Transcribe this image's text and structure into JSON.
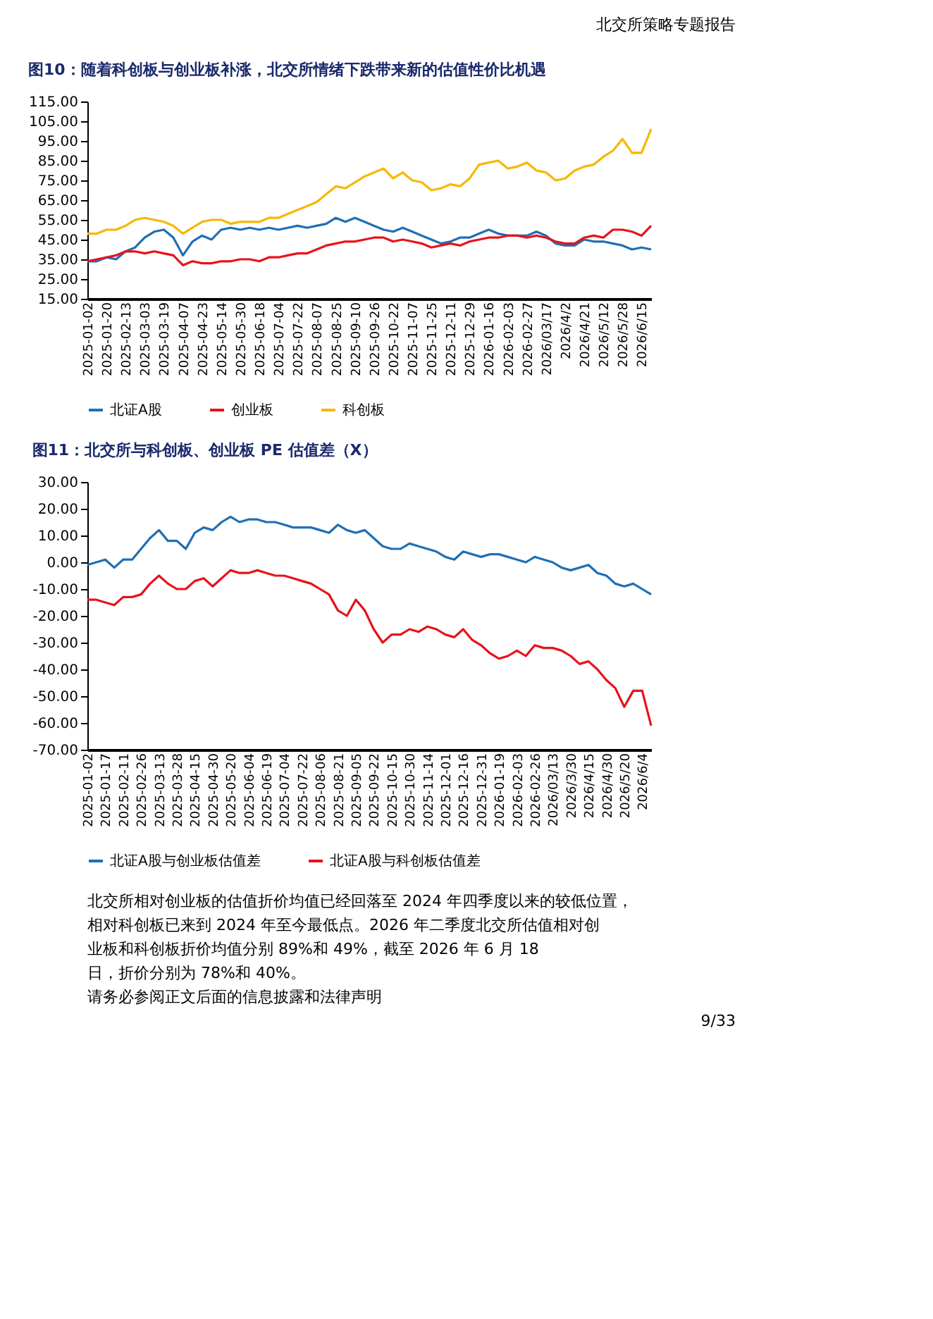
{
  "chart_data": [
    {
      "type": "line",
      "title": "图10：随着科创板与创业板补涨，北交所情绪下跌带来新的估值性价比机遇",
      "annotations": [
        "北交所策略专题报告"
      ],
      "categories": [
        "2025-01-02",
        null,
        "2025-01-20",
        null,
        "2025-02-13",
        null,
        "2025-03-03",
        null,
        "2025-03-19",
        null,
        "2025-04-07",
        null,
        "2025-04-23",
        null,
        "2025-05-14",
        null,
        "2025-05-30",
        null,
        "2025-06-18",
        null,
        "2025-07-04",
        null,
        "2025-07-22",
        null,
        "2025-08-07",
        null,
        "2025-08-25",
        null,
        "2025-09-10",
        null,
        "2025-09-26",
        null,
        "2025-10-22",
        null,
        "2025-11-07",
        null,
        "2025-11-25",
        null,
        "2025-12-11",
        null,
        "2025-12-29",
        null,
        "2026-01-16",
        null,
        "2026-02-03",
        null,
        "2026-02-27",
        null,
        "2026/03/17",
        null,
        "2026/4/2",
        null,
        "2026/4/21",
        null,
        "2026/5/12",
        null,
        "2026/5/28",
        null,
        "2026/6/15",
        null
      ],
      "series": [
        {
          "name": "北证A股",
          "color": "#1f6fb4",
          "values": [
            34,
            34,
            36,
            35,
            39,
            41,
            46,
            49,
            50,
            46,
            37,
            44,
            47,
            45,
            50,
            51,
            50,
            51,
            50,
            51,
            50,
            51,
            52,
            51,
            52,
            53,
            56,
            54,
            56,
            54,
            52,
            50,
            49,
            51,
            49,
            47,
            45,
            43,
            44,
            46,
            46,
            48,
            50,
            48,
            47,
            47,
            47,
            49,
            47,
            43,
            42,
            42,
            45,
            44,
            44,
            43,
            42,
            40,
            41,
            40
          ]
        },
        {
          "name": "创业板",
          "color": "#e8121b",
          "values": [
            34,
            35,
            36,
            37,
            39,
            39,
            38,
            39,
            38,
            37,
            32,
            34,
            33,
            33,
            34,
            34,
            35,
            35,
            34,
            36,
            36,
            37,
            38,
            38,
            40,
            42,
            43,
            44,
            44,
            45,
            46,
            46,
            44,
            45,
            44,
            43,
            41,
            42,
            43,
            42,
            44,
            45,
            46,
            46,
            47,
            47,
            46,
            47,
            46,
            44,
            43,
            43,
            46,
            47,
            46,
            50,
            50,
            49,
            47,
            52
          ]
        },
        {
          "name": "科创板",
          "color": "#f5b800",
          "values": [
            48,
            48,
            50,
            50,
            52,
            55,
            56,
            55,
            54,
            52,
            48,
            51,
            54,
            55,
            55,
            53,
            54,
            54,
            54,
            56,
            56,
            58,
            60,
            62,
            64,
            68,
            72,
            71,
            74,
            77,
            79,
            81,
            76,
            79,
            75,
            74,
            70,
            71,
            73,
            72,
            76,
            83,
            84,
            85,
            81,
            82,
            84,
            80,
            79,
            75,
            76,
            80,
            82,
            83,
            87,
            90,
            96,
            89,
            89,
            101
          ]
        }
      ],
      "ylim": [
        15,
        115
      ],
      "yticks": [
        {
          "value": 15,
          "label": "15.00"
        },
        {
          "value": 25,
          "label": "25.00"
        },
        {
          "value": 35,
          "label": "35.00"
        },
        {
          "value": 45,
          "label": "45.00"
        },
        {
          "value": 55,
          "label": "55.00"
        },
        {
          "value": 65,
          "label": "65.00"
        },
        {
          "value": 75,
          "label": "75.00"
        },
        {
          "value": 85,
          "label": "85.00"
        },
        {
          "value": 95,
          "label": "95.00"
        },
        {
          "value": 105,
          "label": "105.00"
        },
        {
          "value": 115,
          "label": "115.00"
        }
      ],
      "legend": "bottom"
    },
    {
      "type": "line",
      "title": "图11：北交所与科创板、创业板 PE 估值差（X）",
      "annotations": [
        "北交所相对创业板的估值折价均值已经回落至 2024 年四季度以来的较低位置，相对科创板已来到 2024 年至今最低点。2026 年二季度北交所估值相对创业板和科创板折价均值分别 89%和 49%，截至 2026 年 6 月 18 日，折价分别为 78%和 40%。",
        "请务必参阅正文后面的信息披露和法律声明",
        "9/33"
      ],
      "categories": [
        "2025-01-02",
        null,
        "2025-01-17",
        null,
        "2025-02-11",
        null,
        "2025-02-26",
        null,
        "2025-03-13",
        null,
        "2025-03-28",
        null,
        "2025-04-15",
        null,
        "2025-04-30",
        null,
        "2025-05-20",
        null,
        "2025-06-04",
        null,
        "2025-06-19",
        null,
        "2025-07-04",
        null,
        "2025-07-22",
        null,
        "2025-08-06",
        null,
        "2025-08-21",
        null,
        "2025-09-05",
        null,
        "2025-09-22",
        null,
        "2025-10-15",
        null,
        "2025-10-30",
        null,
        "2025-11-14",
        null,
        "2025-12-01",
        null,
        "2025-12-16",
        null,
        "2025-12-31",
        null,
        "2026-01-19",
        null,
        "2026-02-03",
        null,
        "2026-02-26",
        null,
        "2026/03/13",
        null,
        "2026/3/30",
        null,
        "2026/4/15",
        null,
        "2026/4/30",
        null,
        "2026/5/20",
        null,
        "2026/6/4",
        null
      ],
      "series": [
        {
          "name": "北证A股与创业板估值差",
          "color": "#1f6fb4",
          "values": [
            -1,
            0,
            1,
            -2,
            1,
            1,
            5,
            9,
            12,
            8,
            8,
            5,
            11,
            13,
            12,
            15,
            17,
            15,
            16,
            16,
            15,
            15,
            14,
            13,
            13,
            13,
            12,
            11,
            14,
            12,
            11,
            12,
            9,
            6,
            5,
            5,
            7,
            6,
            5,
            4,
            2,
            1,
            4,
            3,
            2,
            3,
            3,
            2,
            1,
            0,
            2,
            1,
            0,
            -2,
            -3,
            -2,
            -1,
            -4,
            -5,
            -8,
            -9,
            -8,
            -10,
            -12
          ]
        },
        {
          "name": "北证A股与科创板估值差",
          "color": "#e8121b",
          "values": [
            -14,
            -14,
            -15,
            -16,
            -13,
            -13,
            -12,
            -8,
            -5,
            -8,
            -10,
            -10,
            -7,
            -6,
            -9,
            -6,
            -3,
            -4,
            -4,
            -3,
            -4,
            -5,
            -5,
            -6,
            -7,
            -8,
            -10,
            -12,
            -18,
            -20,
            -14,
            -18,
            -25,
            -30,
            -27,
            -27,
            -25,
            -26,
            -24,
            -25,
            -27,
            -28,
            -25,
            -29,
            -31,
            -34,
            -36,
            -35,
            -33,
            -35,
            -31,
            -32,
            -32,
            -33,
            -35,
            -38,
            -37,
            -40,
            -44,
            -47,
            -54,
            -48,
            -48,
            -61
          ]
        }
      ],
      "ylim": [
        -70,
        30
      ],
      "yticks": [
        {
          "value": -70,
          "label": "-70.00"
        },
        {
          "value": -60,
          "label": "-60.00"
        },
        {
          "value": -50,
          "label": "-50.00"
        },
        {
          "value": -40,
          "label": "-40.00"
        },
        {
          "value": -30,
          "label": "-30.00"
        },
        {
          "value": -20,
          "label": "-20.00"
        },
        {
          "value": -10,
          "label": "-10.00"
        },
        {
          "value": 0,
          "label": "0.00"
        },
        {
          "value": 10,
          "label": "10.00"
        },
        {
          "value": 20,
          "label": "20.00"
        },
        {
          "value": 30,
          "label": "30.00"
        }
      ],
      "legend": "bottom"
    }
  ]
}
